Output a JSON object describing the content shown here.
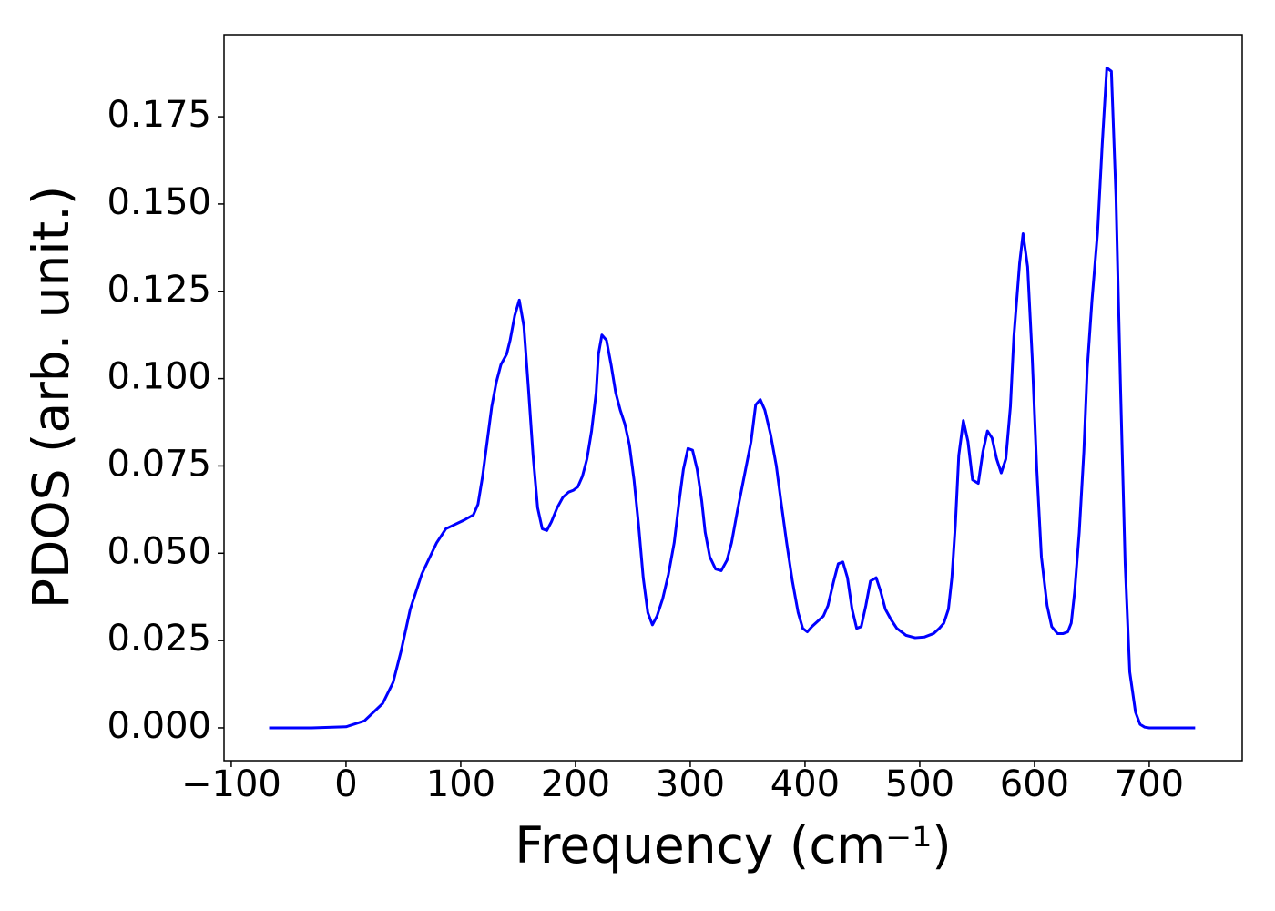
{
  "chart_data": {
    "type": "line",
    "x_label": "Frequency (cm⁻¹)",
    "y_label": "PDOS (arb. unit.)",
    "series": [
      {
        "color": "#0000ff",
        "x": [
          -67,
          -30,
          0,
          16,
          32,
          41,
          48,
          56,
          66,
          79,
          87,
          103,
          111,
          115,
          119,
          123,
          127,
          131,
          135,
          140,
          143,
          147,
          151,
          155,
          159,
          163,
          167,
          171,
          175,
          179,
          184,
          189,
          194,
          198,
          202,
          206,
          210,
          214,
          218,
          220,
          223,
          227,
          231,
          235,
          239,
          243,
          247,
          251,
          255,
          259,
          263,
          267,
          271,
          276,
          281,
          286,
          290,
          294,
          298,
          302,
          306,
          310,
          313,
          317,
          322,
          327,
          332,
          336,
          341,
          347,
          353,
          357,
          361,
          365,
          370,
          375,
          379,
          384,
          389,
          394,
          398,
          402,
          406,
          411,
          416,
          420,
          425,
          429,
          433,
          437,
          441,
          445,
          449,
          453,
          457,
          462,
          466,
          470,
          475,
          480,
          488,
          496,
          504,
          512,
          517,
          521,
          525,
          528,
          531,
          534,
          538,
          542,
          546,
          551,
          555,
          559,
          563,
          567,
          571,
          575,
          579,
          582,
          587,
          590,
          594,
          598,
          602,
          606,
          611,
          615,
          620,
          625,
          629,
          632,
          635,
          639,
          643,
          646,
          650,
          655,
          659,
          663,
          667,
          671,
          675,
          679,
          683,
          688,
          692,
          696,
          700,
          740
        ],
        "values": [
          0,
          0,
          0.0003,
          0.002,
          0.007,
          0.013,
          0.022,
          0.034,
          0.044,
          0.053,
          0.057,
          0.0595,
          0.061,
          0.064,
          0.072,
          0.082,
          0.092,
          0.099,
          0.104,
          0.107,
          0.111,
          0.118,
          0.1225,
          0.115,
          0.097,
          0.078,
          0.063,
          0.057,
          0.0565,
          0.059,
          0.063,
          0.066,
          0.0675,
          0.068,
          0.069,
          0.072,
          0.077,
          0.085,
          0.096,
          0.107,
          0.1125,
          0.111,
          0.104,
          0.096,
          0.091,
          0.087,
          0.081,
          0.071,
          0.058,
          0.043,
          0.033,
          0.0295,
          0.032,
          0.037,
          0.044,
          0.053,
          0.064,
          0.074,
          0.08,
          0.0795,
          0.074,
          0.065,
          0.056,
          0.049,
          0.0455,
          0.045,
          0.048,
          0.053,
          0.062,
          0.072,
          0.082,
          0.0925,
          0.094,
          0.091,
          0.084,
          0.075,
          0.065,
          0.053,
          0.042,
          0.033,
          0.0285,
          0.0275,
          0.029,
          0.0305,
          0.032,
          0.035,
          0.042,
          0.047,
          0.0475,
          0.043,
          0.034,
          0.0285,
          0.029,
          0.035,
          0.042,
          0.043,
          0.039,
          0.034,
          0.031,
          0.0285,
          0.0265,
          0.0258,
          0.026,
          0.027,
          0.0285,
          0.03,
          0.034,
          0.043,
          0.058,
          0.078,
          0.088,
          0.082,
          0.071,
          0.07,
          0.079,
          0.085,
          0.083,
          0.077,
          0.073,
          0.077,
          0.092,
          0.112,
          0.133,
          0.1415,
          0.132,
          0.106,
          0.074,
          0.049,
          0.035,
          0.029,
          0.027,
          0.027,
          0.0275,
          0.03,
          0.039,
          0.056,
          0.079,
          0.103,
          0.122,
          0.142,
          0.167,
          0.189,
          0.188,
          0.152,
          0.097,
          0.047,
          0.016,
          0.0045,
          0.001,
          0.0002,
          0,
          0
        ]
      }
    ],
    "xlim": [
      -106.3,
      781
    ],
    "ylim": [
      -0.0094,
      0.1985
    ],
    "xticks": [
      {
        "value": -100,
        "label": "−100"
      },
      0,
      100,
      200,
      300,
      400,
      500,
      600,
      700
    ],
    "yticks": [
      {
        "value": 0,
        "label": "0.000"
      },
      {
        "value": 0.025,
        "label": "0.025"
      },
      {
        "value": 0.05,
        "label": "0.050"
      },
      {
        "value": 0.075,
        "label": "0.075"
      },
      {
        "value": 0.1,
        "label": "0.100"
      },
      {
        "value": 0.125,
        "label": "0.125"
      },
      {
        "value": 0.15,
        "label": "0.150"
      },
      {
        "value": 0.175,
        "label": "0.175"
      }
    ],
    "grid": false
  }
}
